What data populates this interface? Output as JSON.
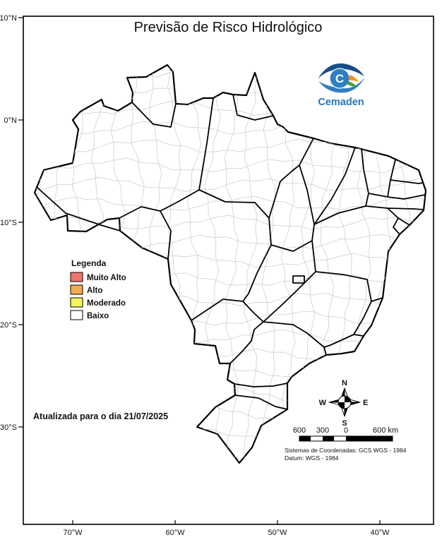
{
  "title": "Previsão de Risco Hidrológico",
  "logo": {
    "name": "Cemaden",
    "c": "C"
  },
  "legend": {
    "title": "Legenda",
    "items": [
      {
        "label": "Muito Alto",
        "color": "#f0736e"
      },
      {
        "label": "Alto",
        "color": "#f2ab50"
      },
      {
        "label": "Moderado",
        "color": "#f5f55e"
      },
      {
        "label": "Baixo",
        "color": "#ffffff"
      }
    ]
  },
  "update_note": "Atualizada para o dia 21/07/2025",
  "axes": {
    "lat": [
      "10°N",
      "0°N",
      "10°S",
      "20°S",
      "30°S"
    ],
    "lon": [
      "70°W",
      "60°W",
      "50°W",
      "40°W"
    ]
  },
  "compass": {
    "n": "N",
    "s": "S",
    "e": "E",
    "w": "W"
  },
  "scale_bar": {
    "labels": [
      "600",
      "300",
      "0"
    ],
    "right_label": "600 km"
  },
  "attribution": {
    "line1": "Sistemas de Coordenadas: GCS WGS - 1984",
    "line2": "Datum: WGS - 1984"
  },
  "map": {
    "state_border_color": "#000000",
    "municipal_border_color": "#cbcbcb"
  }
}
